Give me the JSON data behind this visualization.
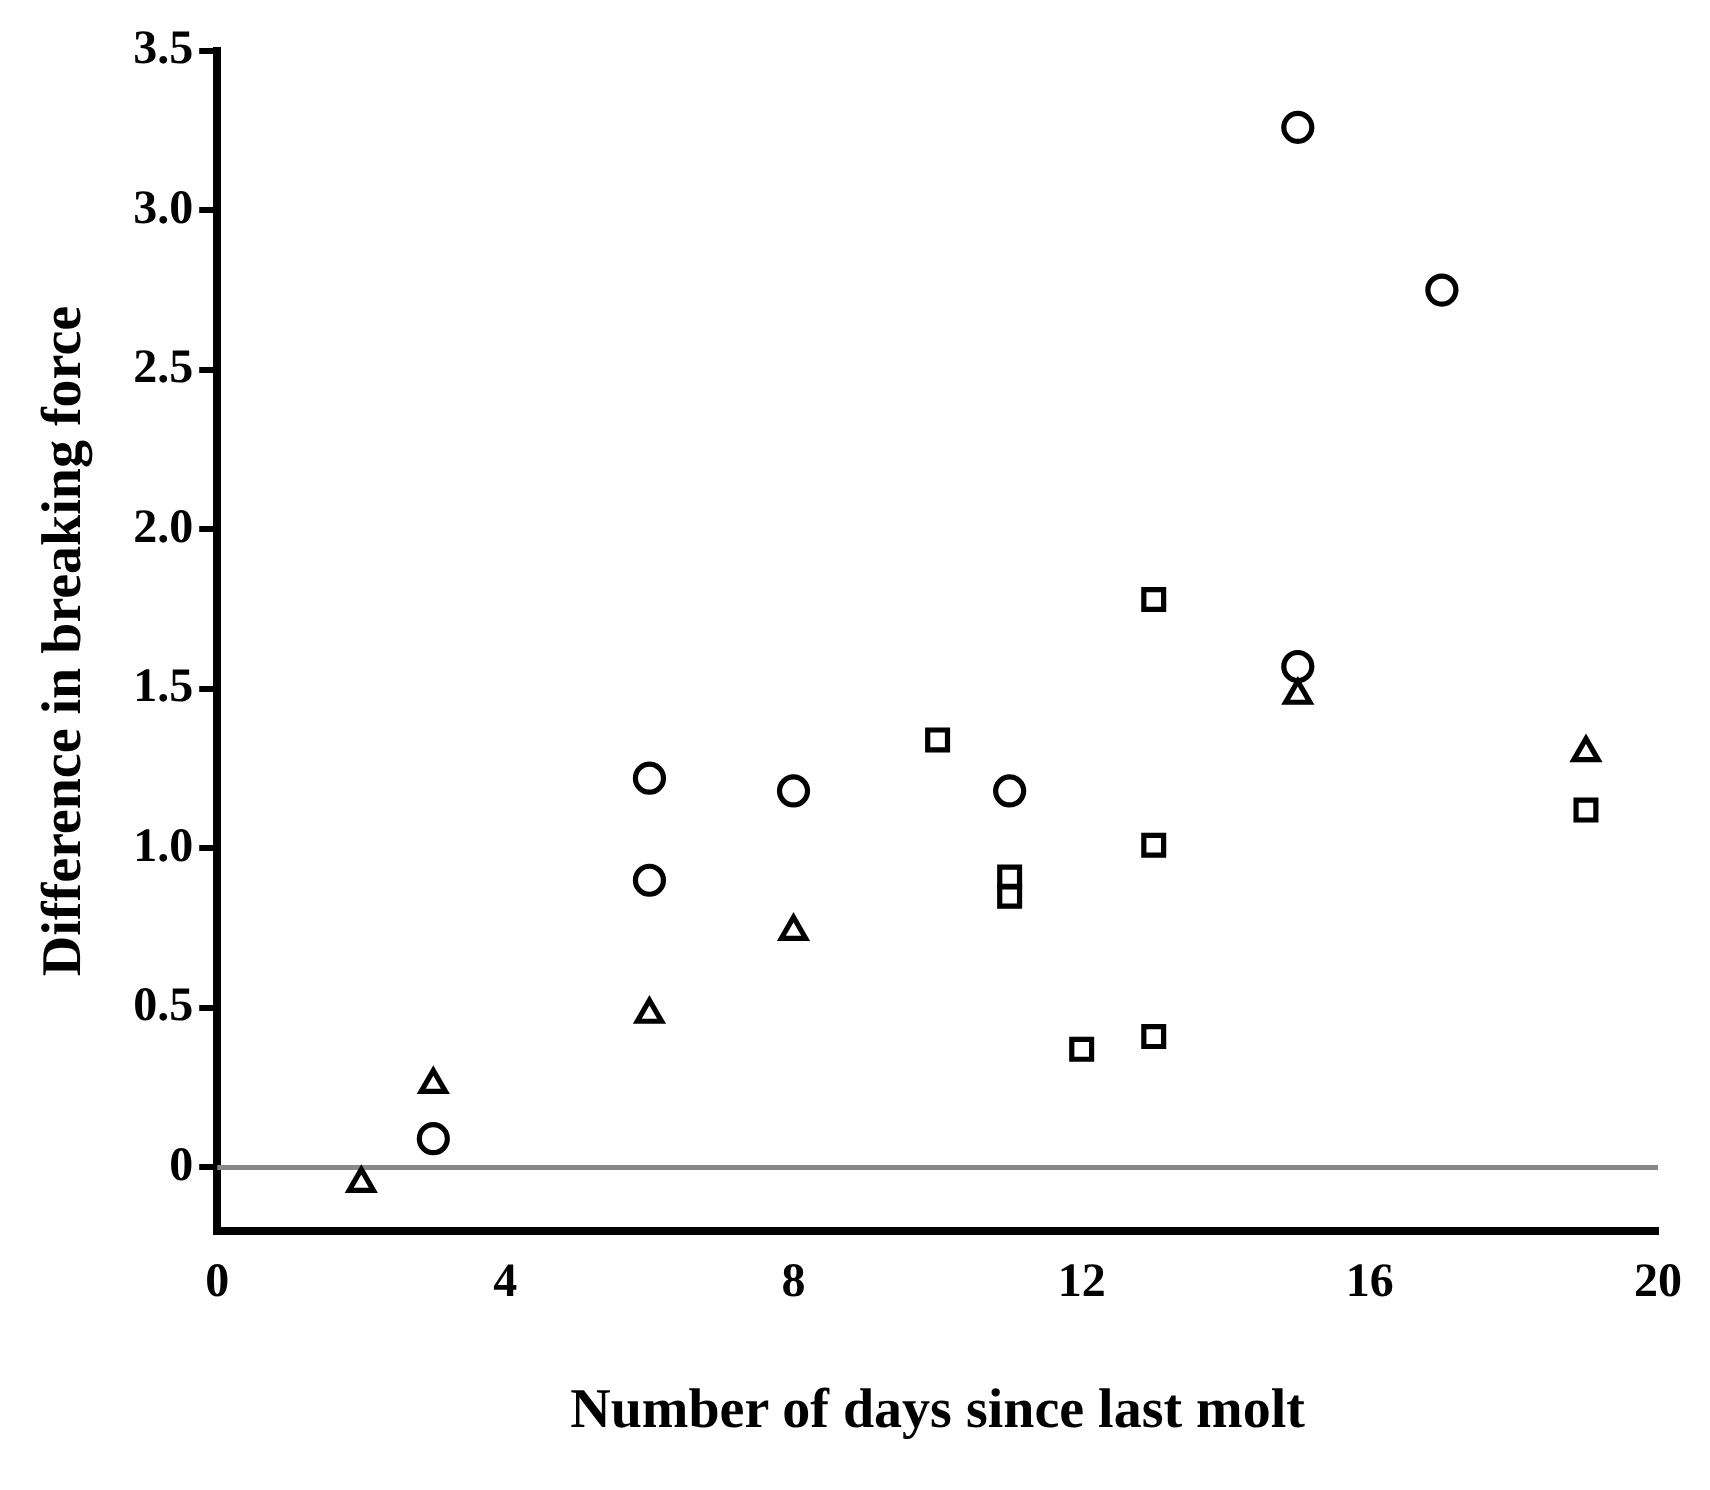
{
  "chart_data": {
    "type": "scatter",
    "xlabel": "Number of days since last molt",
    "ylabel": "Difference in breaking force",
    "xlim": [
      0,
      20
    ],
    "xticks": [
      0,
      4,
      8,
      12,
      16,
      20
    ],
    "ylim": [
      -0.2,
      3.5
    ],
    "yticks": [
      0,
      {
        "value": 0.5,
        "label": "0.5"
      },
      {
        "value": 1,
        "label": "1.0"
      },
      {
        "value": 1.5,
        "label": "1.5"
      },
      {
        "value": 2,
        "label": "2.0"
      },
      {
        "value": 2.5,
        "label": "2.5"
      },
      {
        "value": 3,
        "label": "3.0"
      },
      {
        "value": 3.5,
        "label": "3.5"
      }
    ],
    "grid": false,
    "legend": false,
    "ref_lines": [
      {
        "axis": "y",
        "value": 0,
        "color": "#888888"
      }
    ],
    "series": [
      {
        "color": "#000000",
        "marker": "circle",
        "x": [
          3,
          6,
          6,
          8,
          11,
          15,
          15,
          17
        ],
        "values": [
          0.09,
          1.22,
          0.9,
          1.18,
          1.18,
          1.57,
          3.26,
          2.75
        ]
      },
      {
        "color": "#000000",
        "marker": "square",
        "x": [
          10,
          11,
          11,
          12,
          13,
          13,
          13,
          19
        ],
        "values": [
          1.34,
          0.91,
          0.85,
          0.37,
          1.01,
          0.41,
          1.78,
          1.12
        ]
      },
      {
        "color": "#000000",
        "marker": "triangle",
        "x": [
          2,
          3,
          6,
          8,
          15,
          19
        ],
        "values": [
          -0.05,
          0.26,
          0.48,
          0.74,
          1.48,
          1.3
        ]
      }
    ]
  }
}
